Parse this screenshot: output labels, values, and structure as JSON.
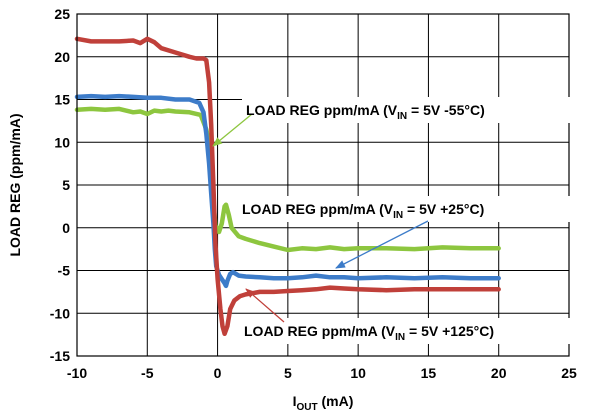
{
  "chart_data": {
    "type": "line",
    "xlabel_main": "I",
    "xlabel_sub": "OUT",
    "xlabel_tail": " (mA)",
    "ylabel": "LOAD REG (ppm/mA)",
    "xlim": [
      -10,
      25
    ],
    "ylim": [
      -15,
      25
    ],
    "x_ticks": [
      -10,
      -5,
      0,
      5,
      10,
      15,
      20,
      25
    ],
    "y_ticks": [
      25,
      20,
      15,
      10,
      5,
      0,
      -5,
      -10,
      -15
    ],
    "grid": true,
    "series": [
      {
        "name": "LOAD REG ppm/mA (VIN = 5V -55°C)",
        "color": "#8dc63f",
        "points": [
          [
            -10,
            13.8
          ],
          [
            -9,
            13.9
          ],
          [
            -8,
            13.8
          ],
          [
            -7,
            13.9
          ],
          [
            -6,
            13.5
          ],
          [
            -5.5,
            13.6
          ],
          [
            -5,
            13.3
          ],
          [
            -4.5,
            13.7
          ],
          [
            -4,
            13.6
          ],
          [
            -3.5,
            13.7
          ],
          [
            -3,
            13.6
          ],
          [
            -2,
            13.5
          ],
          [
            -1.2,
            13.2
          ],
          [
            -0.8,
            11.5
          ],
          [
            -0.6,
            10.0
          ],
          [
            -0.45,
            8.0
          ],
          [
            -0.35,
            5.0
          ],
          [
            -0.25,
            2.0
          ],
          [
            -0.15,
            0.2
          ],
          [
            -0.05,
            0.0
          ],
          [
            0.1,
            -0.5
          ],
          [
            0.3,
            0.5
          ],
          [
            0.5,
            2.5
          ],
          [
            0.6,
            2.7
          ],
          [
            0.8,
            1.5
          ],
          [
            1.0,
            0.0
          ],
          [
            1.5,
            -1.0
          ],
          [
            2,
            -1.3
          ],
          [
            3,
            -1.8
          ],
          [
            4,
            -2.2
          ],
          [
            5,
            -2.6
          ],
          [
            6,
            -2.4
          ],
          [
            7,
            -2.5
          ],
          [
            8,
            -2.3
          ],
          [
            9,
            -2.5
          ],
          [
            10,
            -2.4
          ],
          [
            12,
            -2.4
          ],
          [
            14,
            -2.5
          ],
          [
            16,
            -2.3
          ],
          [
            18,
            -2.4
          ],
          [
            20,
            -2.4
          ]
        ]
      },
      {
        "name": "LOAD REG ppm/mA (VIN = 5V +25°C)",
        "color": "#3d7cc9",
        "points": [
          [
            -10,
            15.3
          ],
          [
            -9,
            15.4
          ],
          [
            -8,
            15.3
          ],
          [
            -7,
            15.4
          ],
          [
            -6,
            15.3
          ],
          [
            -5,
            15.2
          ],
          [
            -4,
            15.2
          ],
          [
            -3,
            15.0
          ],
          [
            -2,
            15.0
          ],
          [
            -1.3,
            14.6
          ],
          [
            -1,
            13.5
          ],
          [
            -0.8,
            11.0
          ],
          [
            -0.6,
            7.5
          ],
          [
            -0.45,
            4.0
          ],
          [
            -0.3,
            0.5
          ],
          [
            -0.2,
            -2.5
          ],
          [
            -0.1,
            -4.5
          ],
          [
            0.1,
            -5.5
          ],
          [
            0.3,
            -6.0
          ],
          [
            0.5,
            -6.5
          ],
          [
            0.6,
            -6.8
          ],
          [
            0.7,
            -6.2
          ],
          [
            0.9,
            -5.4
          ],
          [
            1.1,
            -5.2
          ],
          [
            1.5,
            -5.6
          ],
          [
            2,
            -5.7
          ],
          [
            3,
            -5.8
          ],
          [
            4,
            -5.9
          ],
          [
            5,
            -5.9
          ],
          [
            6,
            -5.8
          ],
          [
            7,
            -5.6
          ],
          [
            8,
            -5.8
          ],
          [
            9,
            -5.8
          ],
          [
            10,
            -5.9
          ],
          [
            12,
            -5.8
          ],
          [
            14,
            -5.9
          ],
          [
            16,
            -5.8
          ],
          [
            18,
            -5.9
          ],
          [
            20,
            -5.9
          ]
        ]
      },
      {
        "name": "LOAD REG ppm/mA (VIN = 5V +125°C)",
        "color": "#c0403a",
        "points": [
          [
            -10,
            22.1
          ],
          [
            -9,
            21.8
          ],
          [
            -8,
            21.8
          ],
          [
            -7,
            21.8
          ],
          [
            -6,
            21.9
          ],
          [
            -5.5,
            21.6
          ],
          [
            -5,
            22.1
          ],
          [
            -4.5,
            21.7
          ],
          [
            -4,
            21.0
          ],
          [
            -3,
            20.5
          ],
          [
            -2,
            20.0
          ],
          [
            -1.5,
            19.8
          ],
          [
            -1,
            19.8
          ],
          [
            -0.8,
            19.6
          ],
          [
            -0.6,
            17.0
          ],
          [
            -0.45,
            12.0
          ],
          [
            -0.3,
            5.0
          ],
          [
            -0.15,
            -2.0
          ],
          [
            0,
            -6.0
          ],
          [
            0.2,
            -9.5
          ],
          [
            0.35,
            -11.5
          ],
          [
            0.5,
            -12.4
          ],
          [
            0.7,
            -11.5
          ],
          [
            0.9,
            -9.5
          ],
          [
            1.2,
            -8.5
          ],
          [
            1.6,
            -8.0
          ],
          [
            2,
            -7.8
          ],
          [
            3,
            -7.5
          ],
          [
            4,
            -7.5
          ],
          [
            5,
            -7.4
          ],
          [
            6,
            -7.3
          ],
          [
            7,
            -7.2
          ],
          [
            8,
            -7.0
          ],
          [
            9,
            -7.1
          ],
          [
            10,
            -7.2
          ],
          [
            12,
            -7.3
          ],
          [
            14,
            -7.2
          ],
          [
            16,
            -7.2
          ],
          [
            18,
            -7.2
          ],
          [
            20,
            -7.2
          ]
        ]
      }
    ],
    "annotations": [
      {
        "pre": "LOAD REG ppm/mA (V",
        "sub": "IN",
        "post": " = 5V -55°C)",
        "arrow_color": "#8dc63f"
      },
      {
        "pre": "LOAD REG ppm/mA (V",
        "sub": "IN",
        "post": " = 5V +25°C)",
        "arrow_color": "#3d7cc9"
      },
      {
        "pre": "LOAD REG ppm/mA (V",
        "sub": "IN",
        "post": " = 5V +125°C)",
        "arrow_color": "#c0403a"
      }
    ]
  }
}
